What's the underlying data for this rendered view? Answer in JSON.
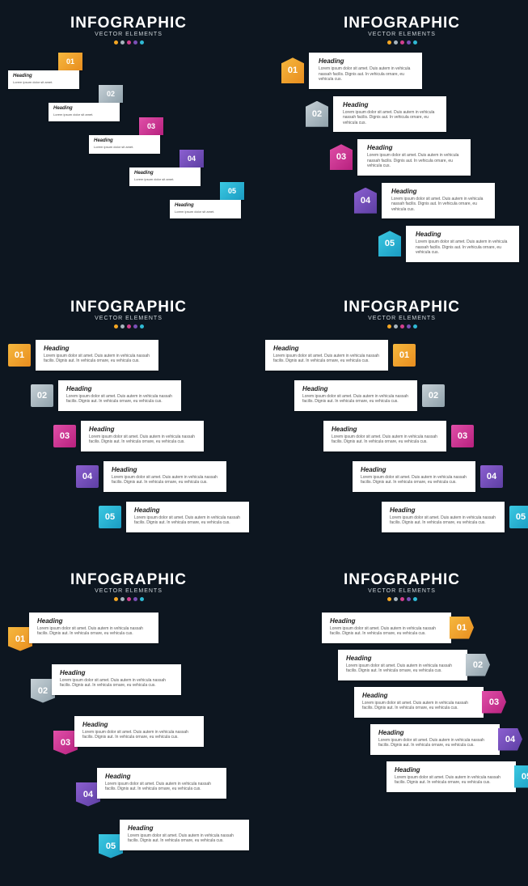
{
  "common": {
    "title": "INFOGRAPHIC",
    "subtitle": "VECTOR ELEMENTS",
    "heading": "Heading",
    "body": "Lorem ipsum dolor sit amet. Duis autem in vehicula nassah facilis. Dignis aut. In vehicula ornare, eu vehicula cus.",
    "body_short": "Lorem ipsum dolor sit amet.",
    "dot_colors": [
      "#f4a623",
      "#a7b4bd",
      "#d13f8e",
      "#7b4fb5",
      "#2fb9d4"
    ],
    "background": "#0d1620"
  },
  "steps": [
    {
      "num": "01",
      "grad": [
        "#f6b83e",
        "#e88d1f"
      ]
    },
    {
      "num": "02",
      "grad": [
        "#c6d0d6",
        "#8fa1ab"
      ]
    },
    {
      "num": "03",
      "grad": [
        "#e04fa8",
        "#b7207e"
      ]
    },
    {
      "num": "04",
      "grad": [
        "#8b5fd0",
        "#5d3fa3"
      ]
    },
    {
      "num": "05",
      "grad": [
        "#3bc9e2",
        "#1a9bc2"
      ]
    }
  ]
}
